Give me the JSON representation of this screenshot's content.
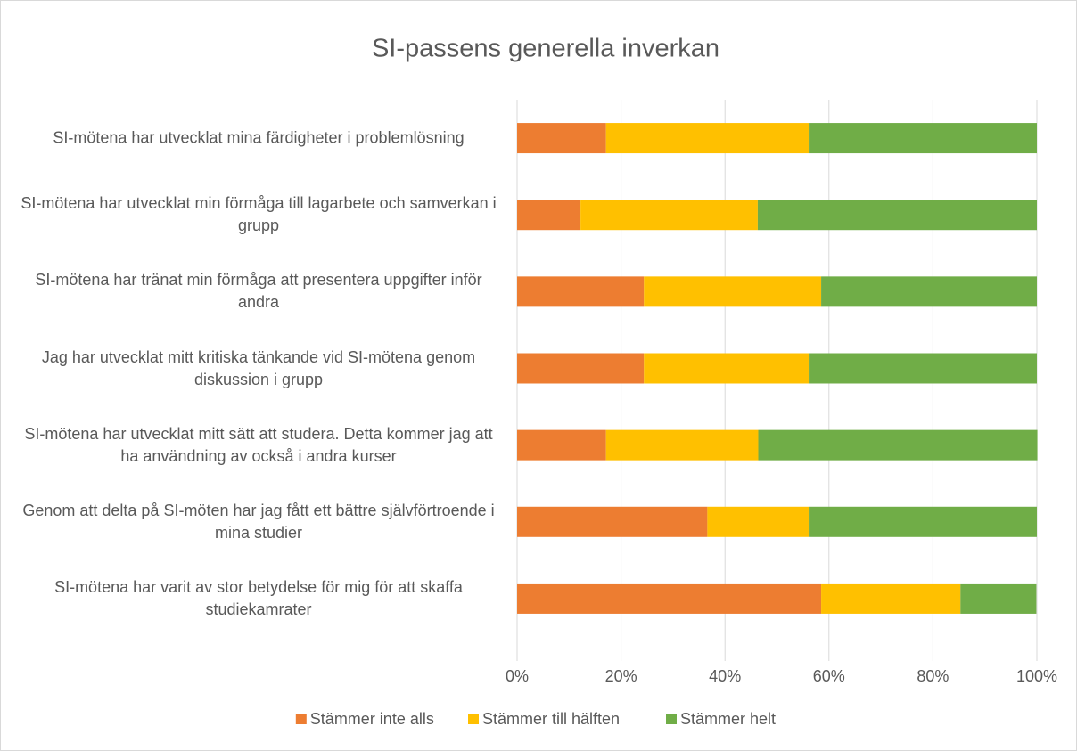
{
  "chart_data": {
    "type": "bar",
    "orientation": "horizontal",
    "stacked": true,
    "title": "SI-passens generella inverkan",
    "categories": [
      "SI-mötena har utvecklat mina färdigheter i problemlösning",
      "SI-mötena har utvecklat min förmåga till lagarbete och samverkan i grupp",
      "SI-mötena har tränat min förmåga att presentera uppgifter inför andra",
      "Jag har utvecklat mitt kritiska tänkande vid SI-mötena genom diskussion i grupp",
      "SI-mötena har utvecklat mitt sätt att studera. Detta kommer jag att ha användning av också i andra kurser",
      "Genom att delta på SI-möten har jag fått ett bättre självförtroende i mina studier",
      "SI-mötena har varit av stor betydelse för mig för att skaffa studiekamrater"
    ],
    "series": [
      {
        "name": "Stämmer inte alls",
        "color": "#ed7d31",
        "values": [
          17.1,
          12.2,
          24.4,
          24.4,
          17.1,
          36.6,
          58.5
        ]
      },
      {
        "name": "Stämmer till hälften",
        "color": "#ffc000",
        "values": [
          39.0,
          34.1,
          34.1,
          31.7,
          29.3,
          19.5,
          26.8
        ]
      },
      {
        "name": "Stämmer helt",
        "color": "#70ad47",
        "values": [
          43.9,
          53.7,
          41.5,
          43.9,
          53.7,
          43.9,
          14.6
        ]
      }
    ],
    "xlim": [
      0,
      100
    ],
    "xticks": [
      {
        "value": 0,
        "label": "0%"
      },
      {
        "value": 20,
        "label": "20%"
      },
      {
        "value": 40,
        "label": "40%"
      },
      {
        "value": 60,
        "label": "60%"
      },
      {
        "value": 80,
        "label": "80%"
      },
      {
        "value": 100,
        "label": "100%"
      }
    ],
    "grid": true,
    "legend": "bottom"
  }
}
